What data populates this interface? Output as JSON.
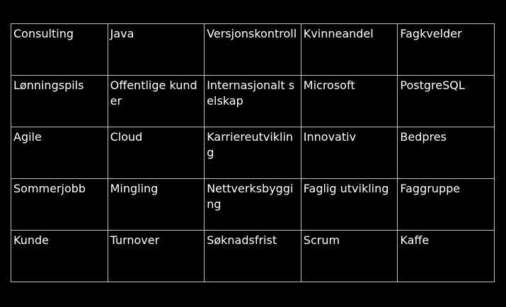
{
  "board": {
    "rows": [
      [
        "Consulting",
        "Java",
        "Versjonskontroll",
        "Kvinneandel",
        "Fagkvelder"
      ],
      [
        "Lønningspils",
        "Offentlige kunder",
        "Internasjonalt selskap",
        "Microsoft",
        "PostgreSQL"
      ],
      [
        "Agile",
        "Cloud",
        "Karriereutvikling",
        "Innovativ",
        "Bedpres"
      ],
      [
        "Sommerjobb",
        "Mingling",
        "Nettverksbygging",
        "Faglig utvikling",
        "Faggruppe"
      ],
      [
        "Kunde",
        "Turnover",
        "Søknadsfrist",
        "Scrum",
        "Kaffe"
      ]
    ]
  }
}
